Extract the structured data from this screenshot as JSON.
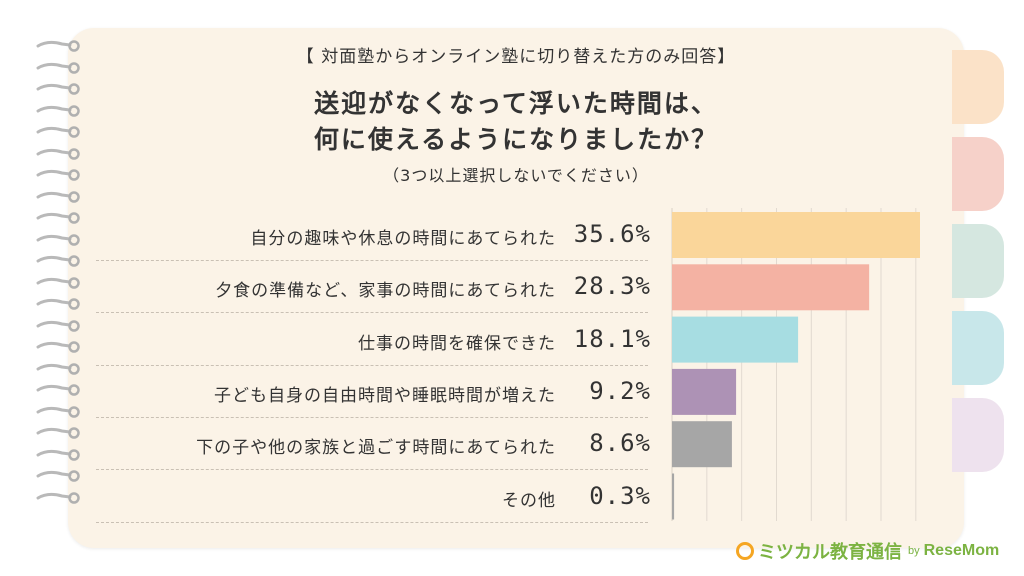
{
  "header": {
    "note": "【 対面塾からオンライン塾に切り替えた方のみ回答】",
    "question_line1": "送迎がなくなって浮いた時間は、",
    "question_line2": "何に使えるようになりましたか？",
    "instruction": "（3つ以上選択しないでください）"
  },
  "colors": {
    "page_bg": "#fbf3e7",
    "tabs": [
      "#fbe2c8",
      "#f6d1c9",
      "#d5e7e0",
      "#c8e7ea",
      "#eee2ee"
    ]
  },
  "chart_data": {
    "type": "bar",
    "orientation": "horizontal",
    "categories": [
      "自分の趣味や休息の時間にあてられた",
      "夕食の準備など、家事の時間にあてられた",
      "仕事の時間を確保できた",
      "子ども自身の自由時間や睡眠時間が増えた",
      "下の子や他の家族と過ごす時間にあてられた",
      "その他"
    ],
    "values": [
      35.6,
      28.3,
      18.1,
      9.2,
      8.6,
      0.3
    ],
    "value_labels": [
      "35.6%",
      "28.3%",
      "18.1%",
      "9.2%",
      "8.6%",
      "0.3%"
    ],
    "bar_colors": [
      "#fad69a",
      "#f4b2a3",
      "#a7dde2",
      "#ad92b5",
      "#a6a6a6",
      "#a6a6a6"
    ],
    "xlim": [
      0,
      40
    ],
    "grid": true,
    "xlabel": "",
    "ylabel": ""
  },
  "logo": {
    "main": "ミツカル教育通信",
    "by": "by",
    "brand": "ReseMom"
  }
}
